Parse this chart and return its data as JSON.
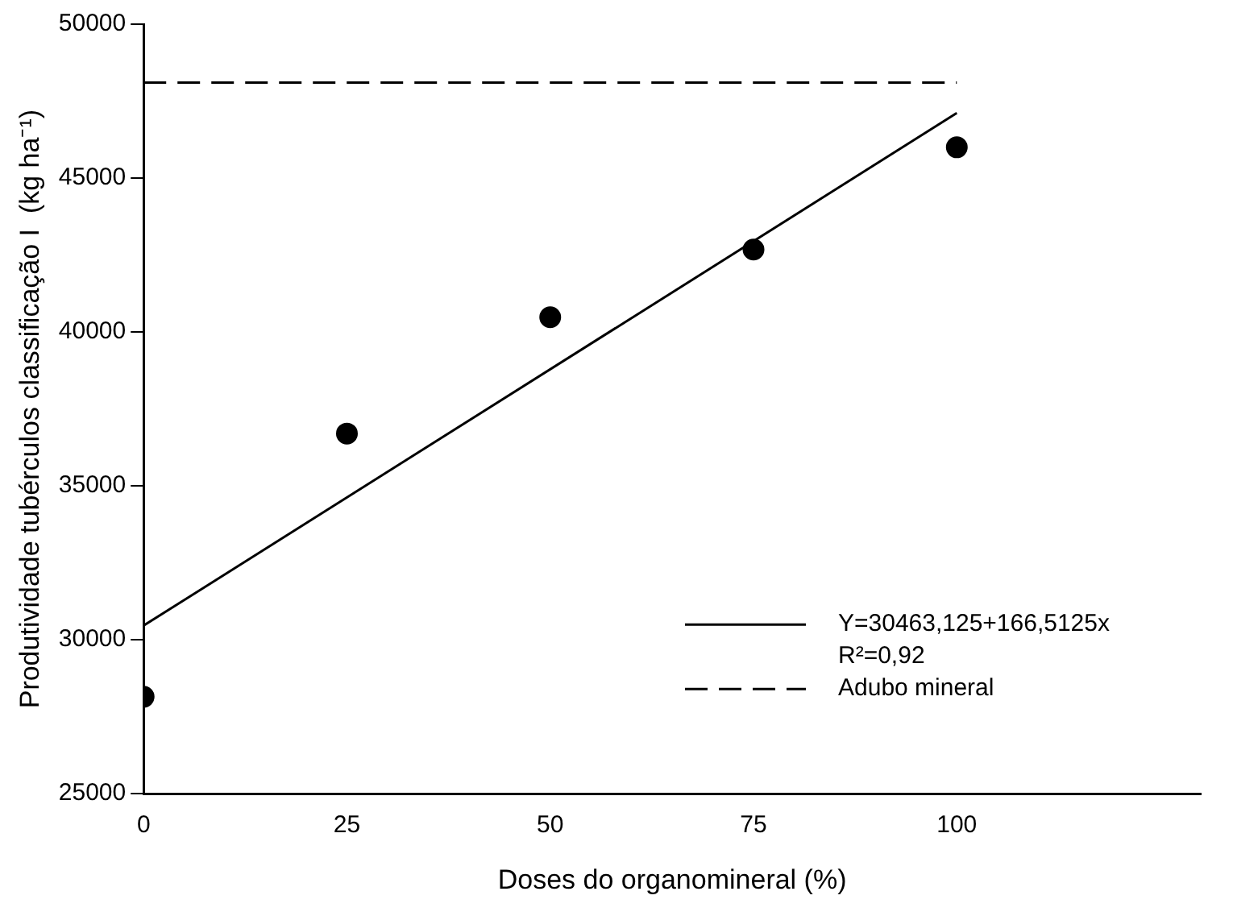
{
  "chart_data": {
    "type": "scatter",
    "xlabel": "Doses do organomineral (%)",
    "ylabel": "Produtividade tubérculos classificação I  (kg ha⁻¹)",
    "x": [
      0,
      25,
      50,
      75,
      100
    ],
    "xlim": [
      0,
      130
    ],
    "xticks": [
      0,
      25,
      50,
      75,
      100
    ],
    "ylim": [
      25000,
      50000
    ],
    "yticks": [
      25000,
      30000,
      35000,
      40000,
      45000,
      50000
    ],
    "series": [
      {
        "color": "#000000",
        "values": [
          28150,
          36700,
          40480,
          42680,
          46000
        ],
        "marker": "circle"
      },
      {
        "name": "Y=30463,125+166,5125x",
        "type": "line",
        "x": [
          0,
          100
        ],
        "values": [
          30463,
          47114
        ],
        "color": "#000000",
        "marker": "none",
        "line_style": "solid"
      }
    ],
    "ref_lines": [
      {
        "axis": "y",
        "value": 48100,
        "label": "Adubo mineral",
        "color": "#000000",
        "line_style": "dashed"
      }
    ],
    "annotations": [
      "R²=0,92"
    ],
    "legend": "bottom right",
    "grid": false
  }
}
